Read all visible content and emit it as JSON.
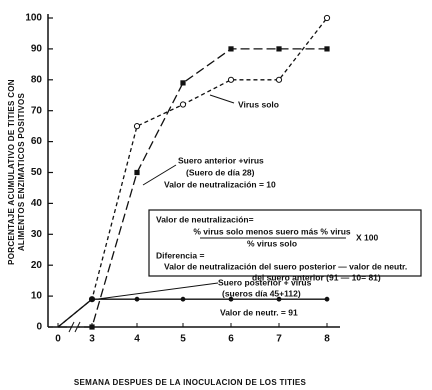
{
  "chart_data": {
    "type": "line",
    "y_label": [
      "PORCENTAJE ACUMULATIVO DE TITIES CON",
      "ALIMENTOS ENZIMATICOS POSITIVOS"
    ],
    "x_label": "SEMANA DESPUES DE LA INOCULACION DE LOS TITIES",
    "categories": [
      "0",
      "3",
      "4",
      "5",
      "6",
      "7",
      "8"
    ],
    "ylim": [
      0,
      100
    ],
    "yticks": [
      0,
      10,
      20,
      30,
      40,
      50,
      60,
      70,
      80,
      90,
      100
    ],
    "series": [
      {
        "name": "Virus solo",
        "color": "#111111",
        "marker": "open-circle",
        "values": [
          0,
          9,
          65,
          72,
          80,
          80,
          100
        ]
      },
      {
        "name": "Suero anterior +virus",
        "color": "#111111",
        "marker": "square",
        "values": [
          0,
          0,
          50,
          79,
          90,
          90,
          90
        ]
      },
      {
        "name": "Suero posterior + virus",
        "color": "#111111",
        "marker": "dot",
        "values": [
          0,
          9,
          9,
          9,
          9,
          9,
          9
        ]
      }
    ],
    "annotations": [
      "(Suero de día 28)",
      "Valor de neutralización = 10",
      "(sueros día 45+112)",
      "Valor de neutr. = 91"
    ],
    "box": [
      "Valor de neutralización=",
      "% virus solo menos suero más % virus",
      "% virus solo",
      "X 100",
      "Diferencia =",
      "Valor de neutralización del suero posterior — valor de neutr.",
      "del suero anterior  (91 — 10= 81)"
    ]
  }
}
